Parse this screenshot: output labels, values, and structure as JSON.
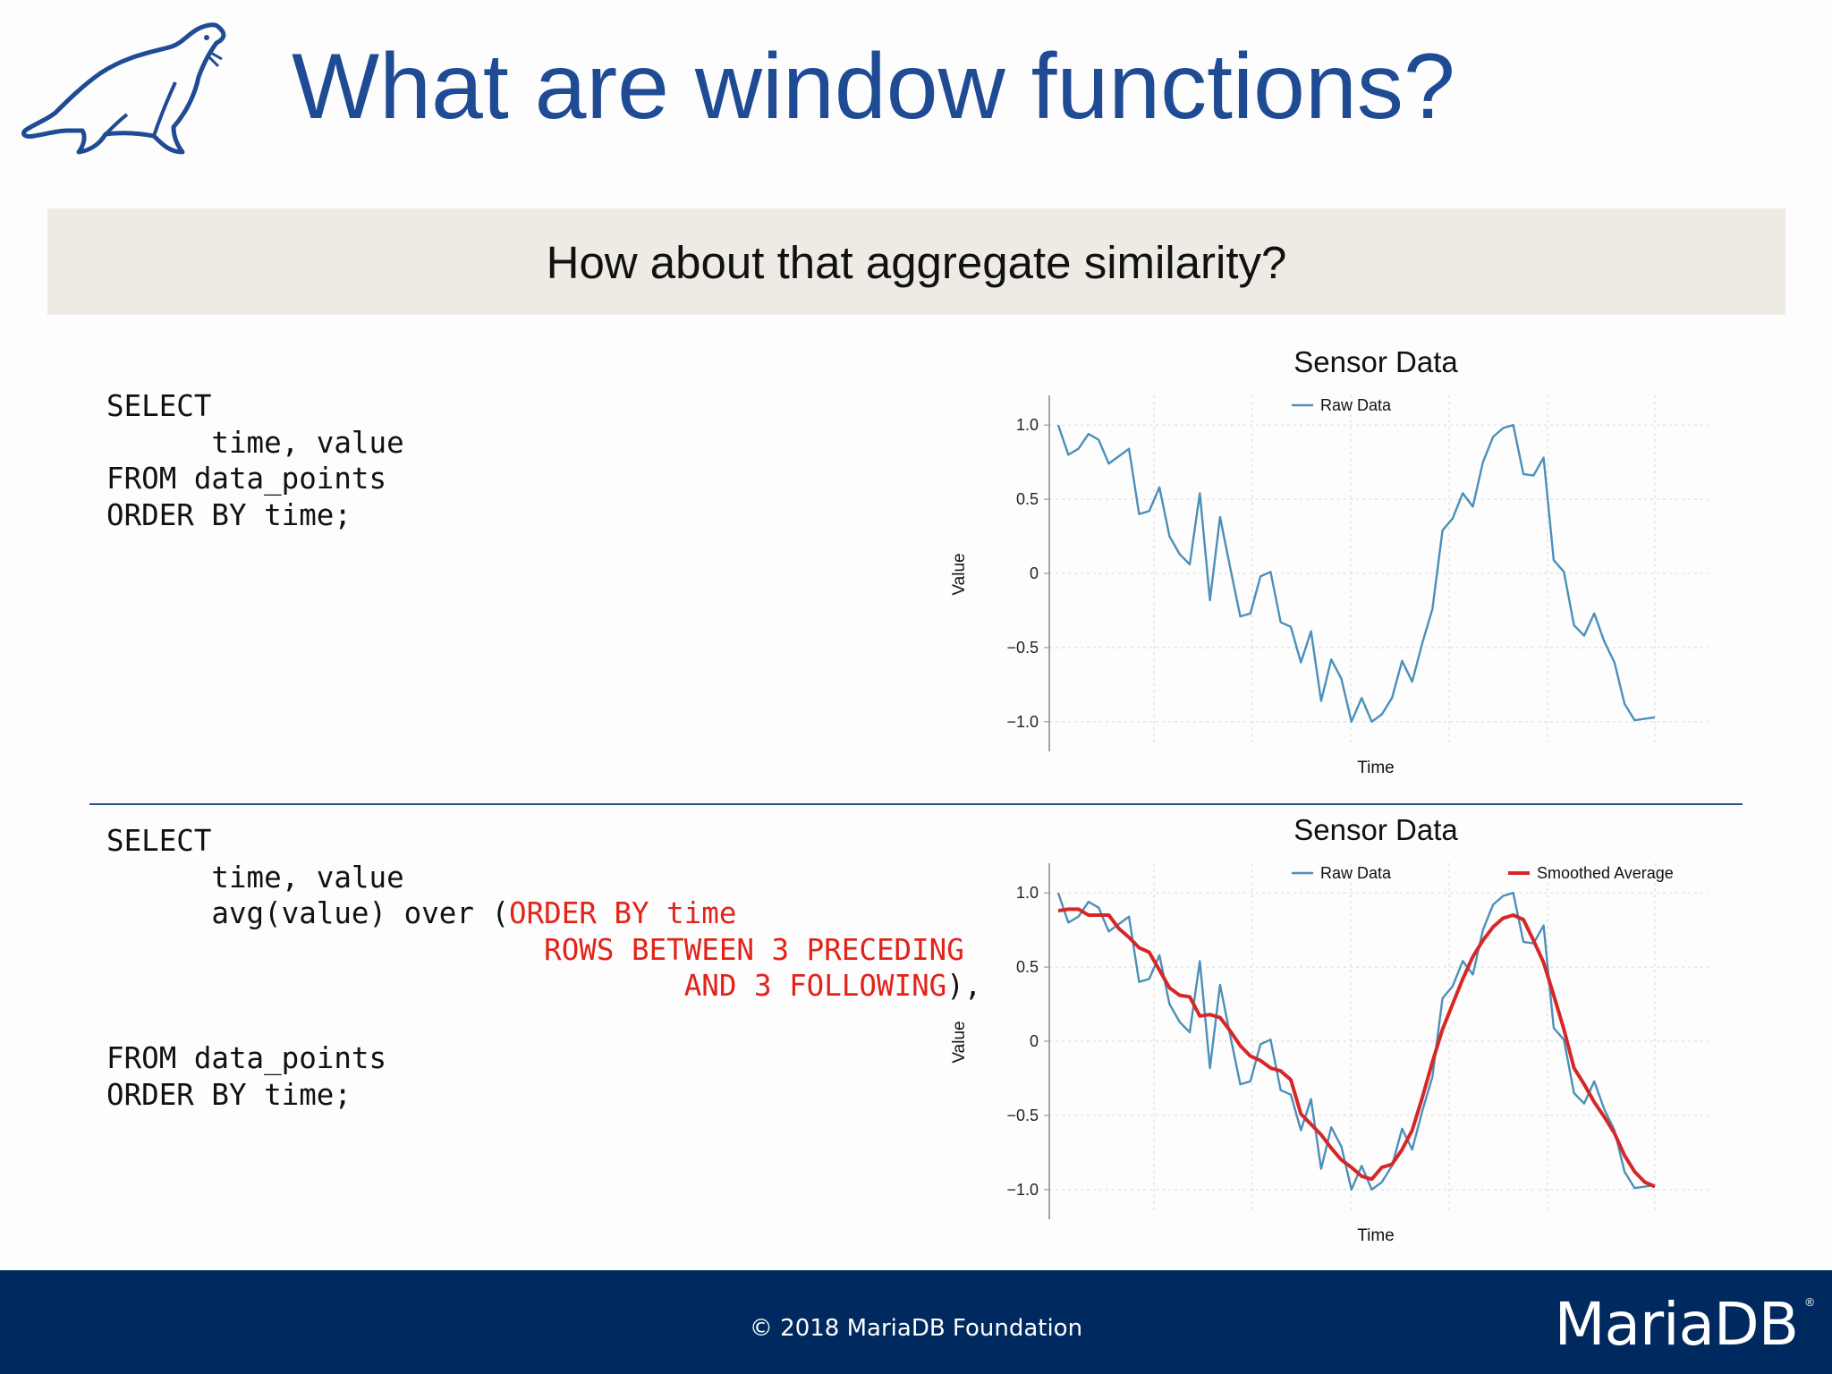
{
  "header": {
    "title": "What are window functions?",
    "logo_icon": "sea-lion-logo-icon"
  },
  "banner": {
    "text": "How about that aggregate similarity?"
  },
  "query1": {
    "lines": [
      "SELECT",
      "      time, value",
      "FROM data_points",
      "ORDER BY time;"
    ]
  },
  "query2": {
    "l1": "SELECT",
    "l2": "      time, value",
    "l3a": "      avg(value) over (",
    "l3b": "ORDER BY time",
    "l4b": "ROWS BETWEEN 3 PRECEDING",
    "l5b": "AND 3 FOLLOWING",
    "l5c": "),",
    "l6": "FROM data_points",
    "l7": "ORDER BY time;"
  },
  "footer": {
    "copyright": "© 2018 MariaDB Foundation",
    "brand": "MariaDB",
    "brand_mark": "®"
  },
  "colors": {
    "title": "#1f4b94",
    "raw": "#4b8fba",
    "smoothed": "#d62728",
    "footer_bg": "#00295f",
    "keyword": "#e2231a"
  },
  "chart_data": [
    {
      "type": "line",
      "title": "Sensor Data",
      "xlabel": "Time",
      "ylabel": "Value",
      "ylim": [
        -1.2,
        1.2
      ],
      "yticks": [
        "1.0",
        "0.5",
        "0",
        "−0.5",
        "−1.0"
      ],
      "ytick_values": [
        1.0,
        0.5,
        0,
        -0.5,
        -1.0
      ],
      "grid": true,
      "legend": "top",
      "series": [
        {
          "name": "Raw Data",
          "color": "#4b8fba",
          "values": [
            1.0,
            0.8,
            0.84,
            0.94,
            0.9,
            0.74,
            0.79,
            0.84,
            0.4,
            0.42,
            0.58,
            0.25,
            0.13,
            0.06,
            0.54,
            -0.18,
            0.38,
            0.04,
            -0.29,
            -0.27,
            -0.02,
            0.01,
            -0.33,
            -0.36,
            -0.6,
            -0.39,
            -0.86,
            -0.58,
            -0.71,
            -1.0,
            -0.84,
            -1.0,
            -0.95,
            -0.84,
            -0.59,
            -0.73,
            -0.47,
            -0.24,
            0.29,
            0.37,
            0.54,
            0.45,
            0.75,
            0.92,
            0.98,
            1.0,
            0.67,
            0.66,
            0.78,
            0.09,
            0.01,
            -0.35,
            -0.42,
            -0.27,
            -0.46,
            -0.6,
            -0.88,
            -0.99,
            -0.98,
            -0.97
          ]
        }
      ]
    },
    {
      "type": "line",
      "title": "Sensor Data",
      "xlabel": "Time",
      "ylabel": "Value",
      "ylim": [
        -1.2,
        1.2
      ],
      "yticks": [
        "1.0",
        "0.5",
        "0",
        "−0.5",
        "−1.0"
      ],
      "ytick_values": [
        1.0,
        0.5,
        0,
        -0.5,
        -1.0
      ],
      "grid": true,
      "legend": "top",
      "series": [
        {
          "name": "Raw Data",
          "color": "#4b8fba",
          "values": [
            1.0,
            0.8,
            0.84,
            0.94,
            0.9,
            0.74,
            0.79,
            0.84,
            0.4,
            0.42,
            0.58,
            0.25,
            0.13,
            0.06,
            0.54,
            -0.18,
            0.38,
            0.04,
            -0.29,
            -0.27,
            -0.02,
            0.01,
            -0.33,
            -0.36,
            -0.6,
            -0.39,
            -0.86,
            -0.58,
            -0.71,
            -1.0,
            -0.84,
            -1.0,
            -0.95,
            -0.84,
            -0.59,
            -0.73,
            -0.47,
            -0.24,
            0.29,
            0.37,
            0.54,
            0.45,
            0.75,
            0.92,
            0.98,
            1.0,
            0.67,
            0.66,
            0.78,
            0.09,
            0.01,
            -0.35,
            -0.42,
            -0.27,
            -0.46,
            -0.6,
            -0.88,
            -0.99,
            -0.98,
            -0.97
          ]
        },
        {
          "name": "Smoothed Average",
          "color": "#d62728",
          "values": [
            0.88,
            0.89,
            0.89,
            0.85,
            0.85,
            0.85,
            0.76,
            0.7,
            0.63,
            0.6,
            0.48,
            0.36,
            0.31,
            0.3,
            0.17,
            0.18,
            0.16,
            0.07,
            -0.03,
            -0.1,
            -0.13,
            -0.18,
            -0.2,
            -0.26,
            -0.49,
            -0.56,
            -0.63,
            -0.72,
            -0.8,
            -0.85,
            -0.91,
            -0.93,
            -0.85,
            -0.83,
            -0.73,
            -0.6,
            -0.38,
            -0.14,
            0.08,
            0.25,
            0.42,
            0.57,
            0.68,
            0.77,
            0.83,
            0.85,
            0.82,
            0.68,
            0.53,
            0.31,
            0.08,
            -0.18,
            -0.29,
            -0.41,
            -0.51,
            -0.62,
            -0.77,
            -0.88,
            -0.95,
            -0.98
          ]
        }
      ]
    }
  ]
}
